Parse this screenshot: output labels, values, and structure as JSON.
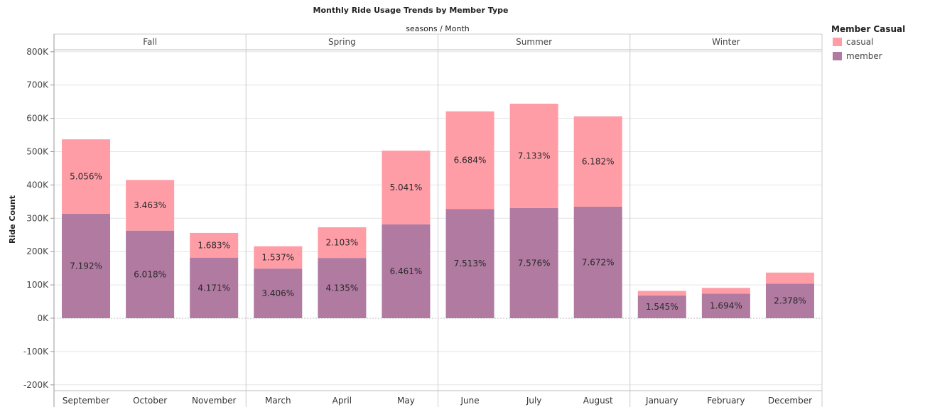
{
  "chart_data": {
    "type": "bar",
    "stacked": true,
    "title": "Monthly Ride Usage Trends by Member Type",
    "column_header": "seasons  /  Month",
    "ylabel": "Ride Count",
    "ylim": [
      -220000,
      820000
    ],
    "yticks": [
      -200000,
      -100000,
      0,
      100000,
      200000,
      300000,
      400000,
      500000,
      600000,
      700000,
      800000
    ],
    "ytick_labels": [
      "-200K",
      "-100K",
      "0K",
      "100K",
      "200K",
      "300K",
      "400K",
      "500K",
      "600K",
      "700K",
      "800K"
    ],
    "grid": true,
    "legend": {
      "title": "Member Casual",
      "position": "top-right"
    },
    "series_colors": {
      "casual": "#ff9da7",
      "member": "#b07aa1"
    },
    "groups": [
      {
        "season": "Fall",
        "months": [
          {
            "month": "September",
            "member": 314000,
            "casual": 223000,
            "member_label": "7.192%",
            "casual_label": "5.056%"
          },
          {
            "month": "October",
            "member": 263000,
            "casual": 152000,
            "member_label": "6.018%",
            "casual_label": "3.463%"
          },
          {
            "month": "November",
            "member": 182000,
            "casual": 74000,
            "member_label": "4.171%",
            "casual_label": "1.683%"
          }
        ]
      },
      {
        "season": "Spring",
        "months": [
          {
            "month": "March",
            "member": 149000,
            "casual": 67000,
            "member_label": "3.406%",
            "casual_label": "1.537%"
          },
          {
            "month": "April",
            "member": 181000,
            "casual": 92000,
            "member_label": "4.135%",
            "casual_label": "2.103%"
          },
          {
            "month": "May",
            "member": 282000,
            "casual": 221000,
            "member_label": "6.461%",
            "casual_label": "5.041%"
          }
        ]
      },
      {
        "season": "Summer",
        "months": [
          {
            "month": "June",
            "member": 328000,
            "casual": 293000,
            "member_label": "7.513%",
            "casual_label": "6.684%"
          },
          {
            "month": "July",
            "member": 331000,
            "casual": 313000,
            "member_label": "7.576%",
            "casual_label": "7.133%"
          },
          {
            "month": "August",
            "member": 335000,
            "casual": 271000,
            "member_label": "7.672%",
            "casual_label": "6.182%"
          }
        ]
      },
      {
        "season": "Winter",
        "months": [
          {
            "month": "January",
            "member": 68000,
            "casual": 14000,
            "member_label": "1.545%",
            "casual_label": ""
          },
          {
            "month": "February",
            "member": 74000,
            "casual": 17000,
            "member_label": "1.694%",
            "casual_label": ""
          },
          {
            "month": "December",
            "member": 104000,
            "casual": 33000,
            "member_label": "2.378%",
            "casual_label": ""
          }
        ]
      }
    ]
  }
}
